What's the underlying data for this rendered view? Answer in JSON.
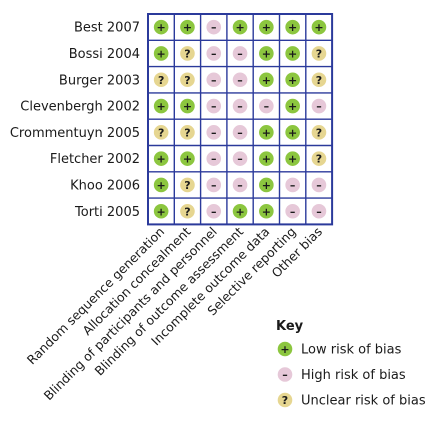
{
  "chart_data": {
    "type": "table",
    "studies": [
      "Best 2007",
      "Bossi 2004",
      "Burger 2003",
      "Clevenbergh 2002",
      "Crommentuyn 2005",
      "Fletcher 2002",
      "Khoo 2006",
      "Torti 2005"
    ],
    "domains": [
      "Random sequence generation",
      "Allocation concealment",
      "Blinding of participants and personnel",
      "Blinding of outcome assessment",
      "Incomplete outcome data",
      "Selective reporting",
      "Other bias"
    ],
    "judgements": [
      [
        "low",
        "low",
        "high",
        "low",
        "low",
        "low",
        "low"
      ],
      [
        "low",
        "unclear",
        "high",
        "high",
        "low",
        "low",
        "unclear"
      ],
      [
        "unclear",
        "unclear",
        "high",
        "high",
        "low",
        "low",
        "unclear"
      ],
      [
        "low",
        "low",
        "high",
        "high",
        "high",
        "low",
        "high"
      ],
      [
        "unclear",
        "unclear",
        "high",
        "high",
        "low",
        "low",
        "unclear"
      ],
      [
        "low",
        "low",
        "high",
        "high",
        "low",
        "low",
        "unclear"
      ],
      [
        "low",
        "unclear",
        "high",
        "high",
        "low",
        "high",
        "high"
      ],
      [
        "low",
        "unclear",
        "high",
        "low",
        "low",
        "high",
        "high"
      ]
    ],
    "categories": {
      "low": {
        "symbol": "+",
        "color": "#8cc63f"
      },
      "high": {
        "symbol": "–",
        "color": "#e6c8d8"
      },
      "unclear": {
        "symbol": "?",
        "color": "#e6d691"
      }
    },
    "grid_color": "#2b3a9b"
  },
  "key": {
    "title": "Key",
    "items": [
      {
        "category": "low",
        "label": "Low risk of bias"
      },
      {
        "category": "high",
        "label": "High risk of bias"
      },
      {
        "category": "unclear",
        "label": "Unclear risk of bias"
      }
    ]
  }
}
